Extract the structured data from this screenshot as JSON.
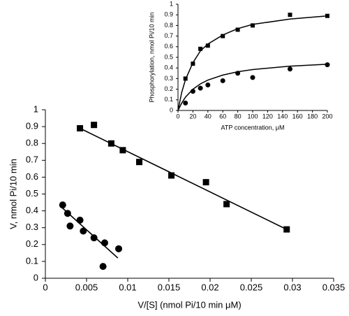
{
  "chart_data": [
    {
      "type": "scatter",
      "xlabel": "V/[S] (nmol Pi/10 min μM)",
      "ylabel": "V, nmol Pi/10 min",
      "xlim": [
        0,
        0.035
      ],
      "xticks": [
        0,
        0.005,
        0.01,
        0.015,
        0.02,
        0.025,
        0.03,
        0.035
      ],
      "ylim": [
        0,
        1
      ],
      "yticks": [
        0,
        0.1,
        0.2,
        0.3,
        0.4,
        0.5,
        0.6,
        0.7,
        0.8,
        0.9,
        1
      ],
      "series": [
        {
          "style": "square",
          "color": "#000000",
          "x": [
            0.0042,
            0.0059,
            0.008,
            0.0094,
            0.0114,
            0.0153,
            0.0195,
            0.022,
            0.0293
          ],
          "values": [
            0.89,
            0.91,
            0.8,
            0.76,
            0.69,
            0.61,
            0.57,
            0.44,
            0.29
          ]
        },
        {
          "style": "circle",
          "color": "#000000",
          "x": [
            0.0021,
            0.0027,
            0.003,
            0.0042,
            0.0046,
            0.0059,
            0.0072,
            0.007,
            0.0089
          ],
          "values": [
            0.435,
            0.385,
            0.31,
            0.345,
            0.28,
            0.24,
            0.21,
            0.07,
            0.175
          ]
        },
        {
          "style": "line",
          "color": "#000000",
          "x": [
            0.0042,
            0.0293
          ],
          "values": [
            0.89,
            0.29
          ]
        },
        {
          "style": "line",
          "color": "#000000",
          "x": [
            0.002,
            0.0088
          ],
          "values": [
            0.42,
            0.12
          ]
        }
      ]
    },
    {
      "type": "scatter",
      "xlabel": "ATP concentration, μM",
      "ylabel": "Phosphorylation, nmol Pi/10 min",
      "xlim": [
        0,
        200
      ],
      "xticks": [
        0,
        20,
        40,
        60,
        80,
        100,
        120,
        140,
        160,
        180,
        200
      ],
      "ylim": [
        0,
        1
      ],
      "yticks": [
        0,
        0.1,
        0.2,
        0.3,
        0.4,
        0.5,
        0.6,
        0.7,
        0.8,
        0.9,
        1
      ],
      "series": [
        {
          "style": "square",
          "color": "#000000",
          "x": [
            10,
            20,
            30,
            40,
            60,
            80,
            100,
            150,
            200
          ],
          "values": [
            0.3,
            0.44,
            0.58,
            0.61,
            0.7,
            0.76,
            0.8,
            0.9,
            0.89
          ]
        },
        {
          "style": "circle",
          "color": "#000000",
          "x": [
            10,
            20,
            30,
            40,
            60,
            80,
            100,
            150,
            200
          ],
          "values": [
            0.07,
            0.18,
            0.21,
            0.24,
            0.28,
            0.35,
            0.31,
            0.39,
            0.43
          ]
        },
        {
          "style": "line",
          "color": "#000000",
          "x": [
            0,
            5,
            10,
            20,
            30,
            40,
            60,
            80,
            100,
            150,
            200
          ],
          "values": [
            0,
            0.17,
            0.29,
            0.45,
            0.56,
            0.625,
            0.71,
            0.77,
            0.81,
            0.86,
            0.89
          ]
        },
        {
          "style": "line",
          "color": "#000000",
          "x": [
            0,
            5,
            10,
            20,
            30,
            40,
            60,
            80,
            100,
            150,
            200
          ],
          "values": [
            0,
            0.07,
            0.125,
            0.2,
            0.25,
            0.286,
            0.333,
            0.364,
            0.385,
            0.417,
            0.435
          ]
        }
      ]
    }
  ]
}
